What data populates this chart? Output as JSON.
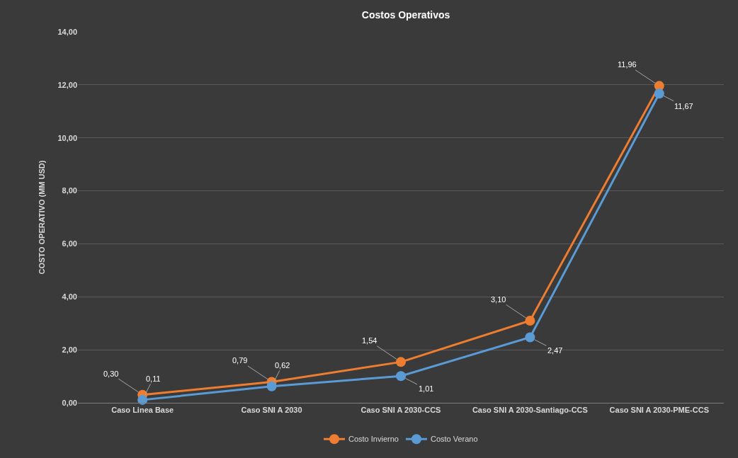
{
  "chart_data": {
    "type": "line",
    "title": "Costos Operativos",
    "ylabel": "COSTO OPERATIVO (MM USD)",
    "categories": [
      "Caso Linea Base",
      "Caso SNI A 2030",
      "Caso SNI A 2030-CCS",
      "Caso SNI A 2030-Santiago-CCS",
      "Caso SNI A 2030-PME-CCS"
    ],
    "series": [
      {
        "name": "Costo Invierno",
        "color": "#ed7d31",
        "values": [
          0.3,
          0.79,
          1.54,
          3.1,
          11.96
        ],
        "value_labels": [
          "0,30",
          "0,79",
          "1,54",
          "3,10",
          "11,96"
        ]
      },
      {
        "name": "Costo Verano",
        "color": "#5b9bd5",
        "values": [
          0.11,
          0.62,
          1.01,
          2.47,
          11.67
        ],
        "value_labels": [
          "0,11",
          "0,62",
          "1,01",
          "2,47",
          "11,67"
        ]
      }
    ],
    "ylim": [
      0,
      14
    ],
    "yticks": [
      {
        "value": 0,
        "label": "0,00"
      },
      {
        "value": 2,
        "label": "2,00"
      },
      {
        "value": 4,
        "label": "4,00"
      },
      {
        "value": 6,
        "label": "6,00"
      },
      {
        "value": 8,
        "label": "8,00"
      },
      {
        "value": 10,
        "label": "10,00"
      },
      {
        "value": 12,
        "label": "12,00"
      },
      {
        "value": 14,
        "label": "14,00"
      }
    ],
    "grid": "y",
    "legend": "bottom",
    "marker": "circle",
    "line_style": "solid"
  }
}
